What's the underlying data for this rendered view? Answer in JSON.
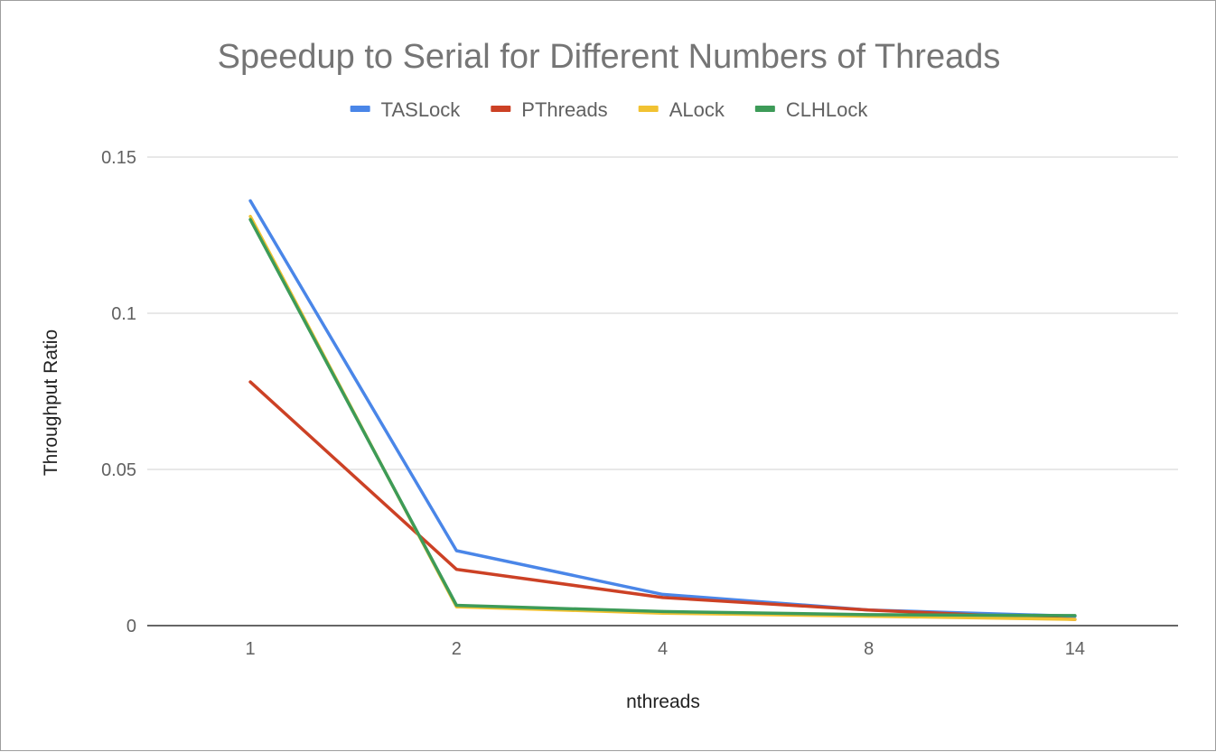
{
  "chart_data": {
    "type": "line",
    "title": "Speedup to Serial for Different Numbers of Threads",
    "xlabel": "nthreads",
    "ylabel": "Throughput Ratio",
    "categories": [
      "1",
      "2",
      "4",
      "8",
      "14"
    ],
    "ylim": [
      0,
      0.15
    ],
    "yticks": [
      "0",
      "0.05",
      "0.1",
      "0.15"
    ],
    "grid": true,
    "legend_position": "top",
    "series": [
      {
        "name": "TASLock",
        "color": "#4a86e8",
        "values": [
          0.136,
          0.024,
          0.01,
          0.005,
          0.003
        ]
      },
      {
        "name": "PThreads",
        "color": "#cc4125",
        "values": [
          0.078,
          0.018,
          0.009,
          0.005,
          0.002
        ]
      },
      {
        "name": "ALock",
        "color": "#f1c232",
        "values": [
          0.131,
          0.006,
          0.004,
          0.003,
          0.002
        ]
      },
      {
        "name": "CLHLock",
        "color": "#3d9b58",
        "values": [
          0.13,
          0.0065,
          0.0045,
          0.0035,
          0.0032
        ]
      }
    ]
  }
}
